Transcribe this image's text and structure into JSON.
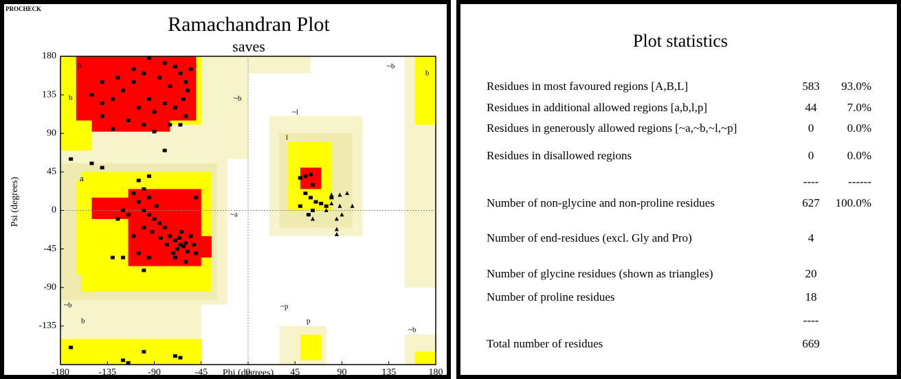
{
  "chart_data": {
    "type": "scatter",
    "corner_note": "PROCHECK",
    "title": "Ramachandran Plot",
    "subtitle": "saves",
    "x_label": "Phi (degrees)",
    "y_label": "Psi (degrees)",
    "xlim": [
      -180,
      180
    ],
    "xticks": [
      -180,
      -135,
      -90,
      -45,
      0,
      45,
      90,
      135,
      180
    ],
    "ylim": [
      -180,
      180
    ],
    "yticks": [
      -135,
      -90,
      -45,
      0,
      45,
      90,
      135,
      180
    ],
    "region_labels": [
      "B",
      "b",
      "~b",
      "a",
      "~a",
      "~l",
      "l",
      "~b",
      "b",
      "~b",
      "b",
      "~p",
      "p",
      "~b"
    ],
    "series": [
      {
        "marker": "square",
        "color": "#000000",
        "x": [
          -95,
          -80,
          -70,
          -65,
          -60,
          -58,
          -62,
          -75,
          -85,
          -100,
          -110,
          -120,
          -130,
          -140,
          -150,
          -125,
          -105,
          -90,
          -80,
          -70,
          -115,
          -130,
          -100,
          -90,
          -60,
          -65,
          -140,
          -75,
          -95,
          -110,
          -55,
          -140,
          -170,
          -150,
          -140,
          -95,
          -80,
          -105,
          -50,
          -65,
          -62,
          -60,
          -68,
          -70,
          -58,
          -55,
          -72,
          -64,
          -75,
          -80,
          -85,
          -90,
          -95,
          -100,
          -105,
          -110,
          -100,
          -95,
          -88,
          -115,
          -120,
          -125,
          -110,
          -100,
          -70,
          -60,
          -50,
          -52,
          -66,
          -78,
          -84,
          -92,
          -105,
          -120,
          -95,
          -130,
          -100,
          -120,
          -115,
          -100,
          -70,
          -65,
          -170,
          55,
          60,
          50,
          62,
          55,
          60,
          65,
          70,
          50,
          62,
          75,
          58,
          80
        ],
        "values": [
          178,
          172,
          168,
          160,
          150,
          140,
          130,
          145,
          155,
          160,
          150,
          140,
          130,
          125,
          135,
          155,
          120,
          115,
          125,
          120,
          105,
          95,
          100,
          92,
          110,
          100,
          110,
          100,
          130,
          165,
          165,
          150,
          60,
          55,
          50,
          40,
          70,
          35,
          15,
          -40,
          -42,
          -38,
          -45,
          -35,
          -48,
          -30,
          -50,
          -25,
          -30,
          -20,
          -15,
          -10,
          -5,
          0,
          10,
          20,
          25,
          15,
          5,
          -5,
          0,
          -10,
          -30,
          -20,
          -55,
          -60,
          -50,
          -40,
          -32,
          -40,
          -32,
          -25,
          -50,
          -55,
          -55,
          -55,
          -70,
          -175,
          -178,
          -165,
          -170,
          -172,
          -160,
          40,
          42,
          38,
          30,
          20,
          15,
          10,
          8,
          5,
          0,
          5,
          -5,
          15
        ]
      },
      {
        "marker": "triangle",
        "color": "#000000",
        "x": [
          80,
          88,
          95,
          80,
          88,
          85,
          90,
          85,
          85,
          75,
          100,
          62
        ],
        "values": [
          18,
          18,
          20,
          8,
          5,
          -10,
          -5,
          -22,
          -28,
          0,
          5,
          -10
        ]
      }
    ]
  },
  "table": {
    "title": "Plot statistics",
    "rows": [
      {
        "label": "Residues in most favoured regions  [A,B,L]",
        "count": 583,
        "percent": "93.0%"
      },
      {
        "label": "Residues in additional allowed regions  [a,b,l,p]",
        "count": 44,
        "percent": "7.0%"
      },
      {
        "label": "Residues in generously allowed regions  [~a,~b,~l,~p]",
        "count": 0,
        "percent": "0.0%"
      },
      {
        "label": "Residues in disallowed regions",
        "count": 0,
        "percent": "0.0%"
      },
      {
        "count": "----",
        "percent": "------"
      },
      {
        "label": "Number of non-glycine and non-proline residues",
        "count": 627,
        "percent": "100.0%"
      },
      {
        "label": "Number of end-residues (excl. Gly and Pro)",
        "count": 4
      },
      {
        "label": "Number of glycine residues (shown as triangles)",
        "count": 20
      },
      {
        "label": "Number of proline residues",
        "count": 18
      },
      {
        "count": "----"
      },
      {
        "label": "Total number of residues",
        "count": 669
      }
    ]
  }
}
